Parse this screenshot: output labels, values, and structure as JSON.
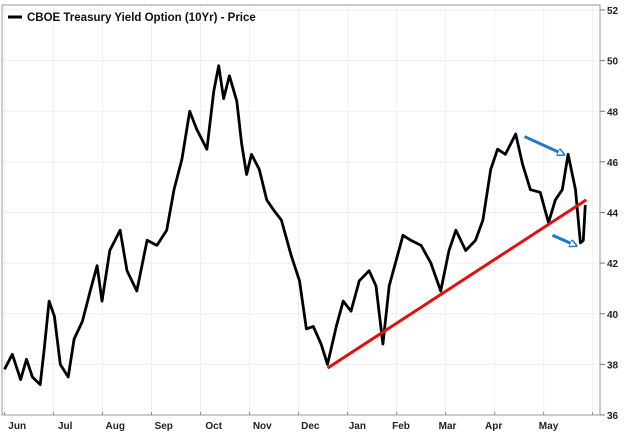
{
  "chart_data": {
    "type": "line",
    "title": "CBOE Treasury Yield Option (10Yr) - Price",
    "legend": [
      {
        "name": "CBOE Treasury Yield Option (10Yr) - Price",
        "color": "#000000",
        "placement": "top-left"
      }
    ],
    "xlabel": "",
    "ylabel": "",
    "x_units": "months since start of June",
    "xlim": [
      -0.05,
      12.15
    ],
    "ylim": [
      36,
      52
    ],
    "yticks": [
      36,
      38,
      40,
      42,
      44,
      46,
      48,
      50,
      52
    ],
    "yaxis_side": "right",
    "grid": true,
    "xticks": [
      {
        "label": "Jun",
        "t": 0.26
      },
      {
        "label": "Jul",
        "t": 1.24
      },
      {
        "label": "Aug",
        "t": 2.26
      },
      {
        "label": "Sep",
        "t": 3.25
      },
      {
        "label": "Oct",
        "t": 4.27
      },
      {
        "label": "Nov",
        "t": 5.26
      },
      {
        "label": "Dec",
        "t": 6.24
      },
      {
        "label": "Jan",
        "t": 7.2
      },
      {
        "label": "Feb",
        "t": 8.09
      },
      {
        "label": "Mar",
        "t": 9.04
      },
      {
        "label": "Apr",
        "t": 9.98
      },
      {
        "label": "May",
        "t": 11.1
      }
    ],
    "series": [
      {
        "name": "CBOE Treasury Yield Option (10Yr) - Price",
        "color": "#000000",
        "points": [
          [
            0,
            37.8
          ],
          [
            0.16,
            38.4
          ],
          [
            0.33,
            37.4
          ],
          [
            0.45,
            38.2
          ],
          [
            0.57,
            37.5
          ],
          [
            0.73,
            37.2
          ],
          [
            0.81,
            38.6
          ],
          [
            0.91,
            40.5
          ],
          [
            1.02,
            39.9
          ],
          [
            1.14,
            38.0
          ],
          [
            1.3,
            37.5
          ],
          [
            1.42,
            39.0
          ],
          [
            1.59,
            39.7
          ],
          [
            1.75,
            40.9
          ],
          [
            1.89,
            41.9
          ],
          [
            1.99,
            40.5
          ],
          [
            2.15,
            42.5
          ],
          [
            2.36,
            43.3
          ],
          [
            2.5,
            41.7
          ],
          [
            2.7,
            40.9
          ],
          [
            2.91,
            42.9
          ],
          [
            3.11,
            42.7
          ],
          [
            3.31,
            43.3
          ],
          [
            3.46,
            44.9
          ],
          [
            3.62,
            46.1
          ],
          [
            3.78,
            48.0
          ],
          [
            3.92,
            47.3
          ],
          [
            4.13,
            46.5
          ],
          [
            4.27,
            48.8
          ],
          [
            4.37,
            49.8
          ],
          [
            4.47,
            48.5
          ],
          [
            4.59,
            49.4
          ],
          [
            4.74,
            48.4
          ],
          [
            4.84,
            46.7
          ],
          [
            4.94,
            45.5
          ],
          [
            5.04,
            46.3
          ],
          [
            5.2,
            45.7
          ],
          [
            5.35,
            44.5
          ],
          [
            5.49,
            44.1
          ],
          [
            5.65,
            43.7
          ],
          [
            5.85,
            42.3
          ],
          [
            6.02,
            41.3
          ],
          [
            6.16,
            39.4
          ],
          [
            6.3,
            39.5
          ],
          [
            6.46,
            38.8
          ],
          [
            6.59,
            38.0
          ],
          [
            6.77,
            39.5
          ],
          [
            6.91,
            40.5
          ],
          [
            7.07,
            40.1
          ],
          [
            7.24,
            41.3
          ],
          [
            7.44,
            41.7
          ],
          [
            7.58,
            41.1
          ],
          [
            7.72,
            38.8
          ],
          [
            7.85,
            41.1
          ],
          [
            7.99,
            42.1
          ],
          [
            8.13,
            43.1
          ],
          [
            8.29,
            42.9
          ],
          [
            8.5,
            42.7
          ],
          [
            8.7,
            42.0
          ],
          [
            8.9,
            40.9
          ],
          [
            9.07,
            42.5
          ],
          [
            9.21,
            43.3
          ],
          [
            9.41,
            42.5
          ],
          [
            9.61,
            42.9
          ],
          [
            9.76,
            43.7
          ],
          [
            9.92,
            45.7
          ],
          [
            10.06,
            46.5
          ],
          [
            10.22,
            46.3
          ],
          [
            10.43,
            47.1
          ],
          [
            10.57,
            45.9
          ],
          [
            10.73,
            44.9
          ],
          [
            10.93,
            44.8
          ],
          [
            11.1,
            43.6
          ],
          [
            11.24,
            44.5
          ],
          [
            11.38,
            44.9
          ],
          [
            11.5,
            46.3
          ],
          [
            11.65,
            44.9
          ],
          [
            11.75,
            42.8
          ],
          [
            11.81,
            42.9
          ],
          [
            11.85,
            44.3
          ]
        ]
      }
    ],
    "annotations": [
      {
        "type": "trendline",
        "color": "#e01010",
        "from": [
          6.59,
          37.85
        ],
        "to": [
          11.87,
          44.5
        ]
      },
      {
        "type": "arrow",
        "color": "#2277cc",
        "from": [
          10.61,
          47.0
        ],
        "to": [
          11.4,
          46.3
        ]
      },
      {
        "type": "arrow",
        "color": "#2277cc",
        "from": [
          11.18,
          43.1
        ],
        "to": [
          11.65,
          42.7
        ]
      }
    ]
  }
}
